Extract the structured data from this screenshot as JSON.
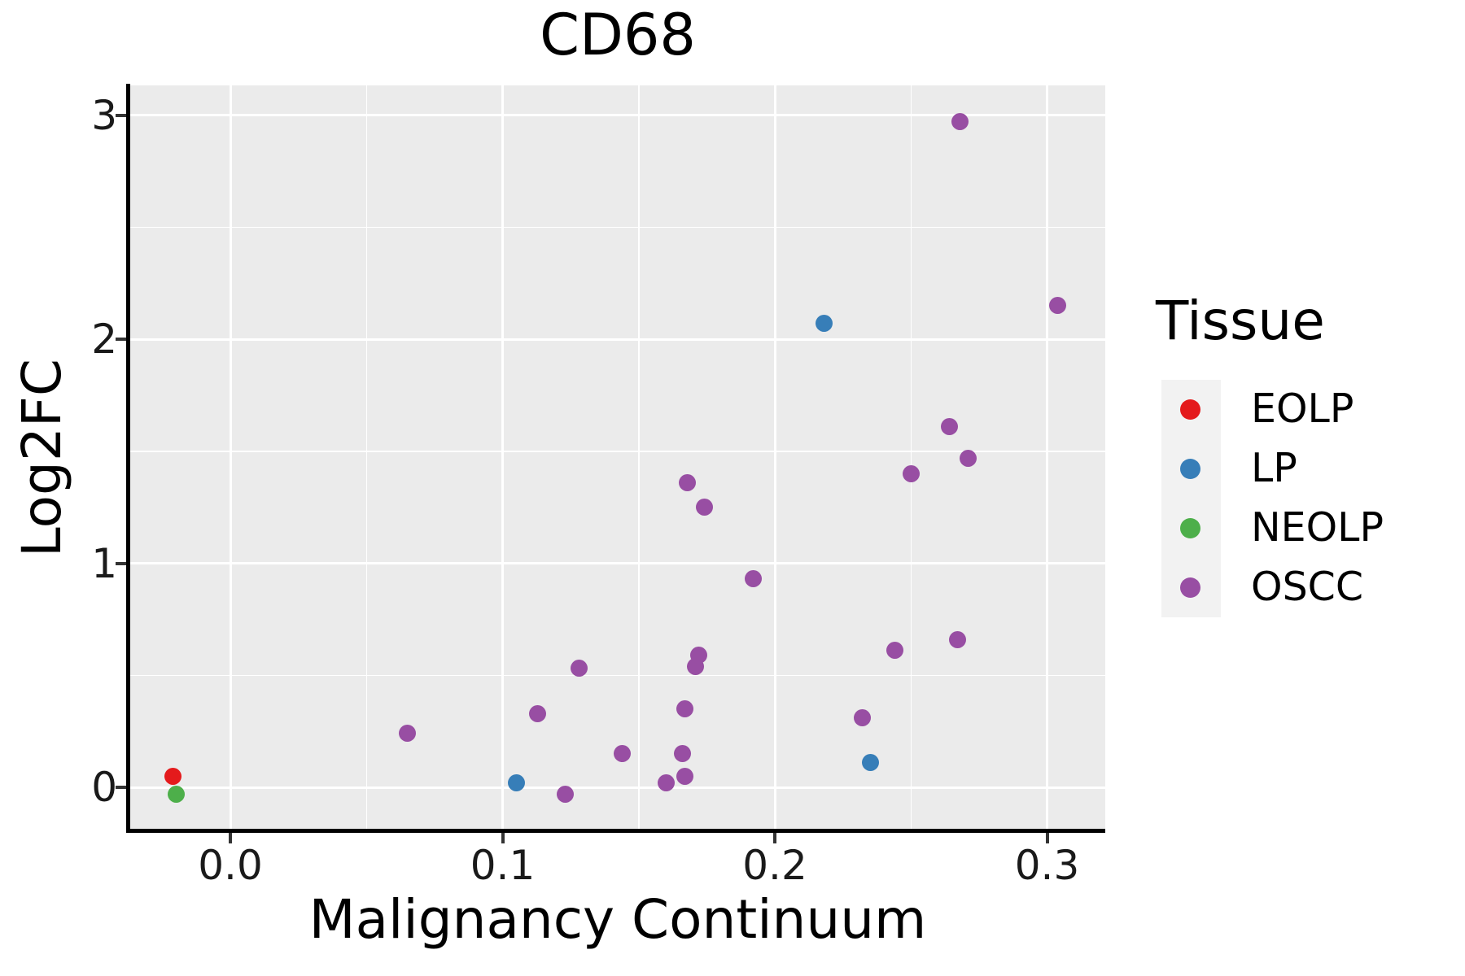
{
  "chart_data": {
    "type": "scatter",
    "title": "CD68",
    "xlabel": "Malignancy Continuum",
    "ylabel": "Log2FC",
    "panel_bg": "#EBEBEB",
    "grid_color": "#FFFFFF",
    "axis_color": "#000000",
    "tick_color": "#333333",
    "xlim": [
      -0.037,
      0.321
    ],
    "ylim": [
      -0.19,
      3.13
    ],
    "x_ticks": [
      {
        "value": 0.0,
        "label": "0.0"
      },
      {
        "value": 0.1,
        "label": "0.1"
      },
      {
        "value": 0.2,
        "label": "0.2"
      },
      {
        "value": 0.3,
        "label": "0.3"
      }
    ],
    "y_ticks": [
      {
        "value": 0,
        "label": "0"
      },
      {
        "value": 1,
        "label": "1"
      },
      {
        "value": 2,
        "label": "2"
      },
      {
        "value": 3,
        "label": "3"
      }
    ],
    "grid": {
      "major": true,
      "minor": true
    },
    "legend": {
      "title": "Tissue",
      "position": "right",
      "entries": [
        {
          "label": "EOLP",
          "color": "#E41A1C"
        },
        {
          "label": "LP",
          "color": "#377EB8"
        },
        {
          "label": "NEOLP",
          "color": "#4DAF4A"
        },
        {
          "label": "OSCC",
          "color": "#984EA3"
        }
      ]
    },
    "series": [
      {
        "name": "EOLP",
        "color": "#E41A1C",
        "points": [
          [
            -0.021,
            0.05
          ]
        ]
      },
      {
        "name": "LP",
        "color": "#377EB8",
        "points": [
          [
            0.105,
            0.02
          ],
          [
            0.218,
            2.07
          ],
          [
            0.235,
            0.11
          ]
        ]
      },
      {
        "name": "NEOLP",
        "color": "#4DAF4A",
        "points": [
          [
            -0.02,
            -0.03
          ]
        ]
      },
      {
        "name": "OSCC",
        "color": "#984EA3",
        "points": [
          [
            0.065,
            0.24
          ],
          [
            0.113,
            0.33
          ],
          [
            0.123,
            -0.03
          ],
          [
            0.128,
            0.53
          ],
          [
            0.144,
            0.15
          ],
          [
            0.16,
            0.02
          ],
          [
            0.166,
            0.15
          ],
          [
            0.167,
            0.35
          ],
          [
            0.167,
            0.05
          ],
          [
            0.168,
            1.36
          ],
          [
            0.171,
            0.54
          ],
          [
            0.172,
            0.59
          ],
          [
            0.174,
            1.25
          ],
          [
            0.192,
            0.93
          ],
          [
            0.232,
            0.31
          ],
          [
            0.244,
            0.61
          ],
          [
            0.25,
            1.4
          ],
          [
            0.264,
            1.61
          ],
          [
            0.267,
            0.66
          ],
          [
            0.268,
            2.97
          ],
          [
            0.271,
            1.47
          ],
          [
            0.304,
            2.15
          ]
        ]
      }
    ]
  }
}
